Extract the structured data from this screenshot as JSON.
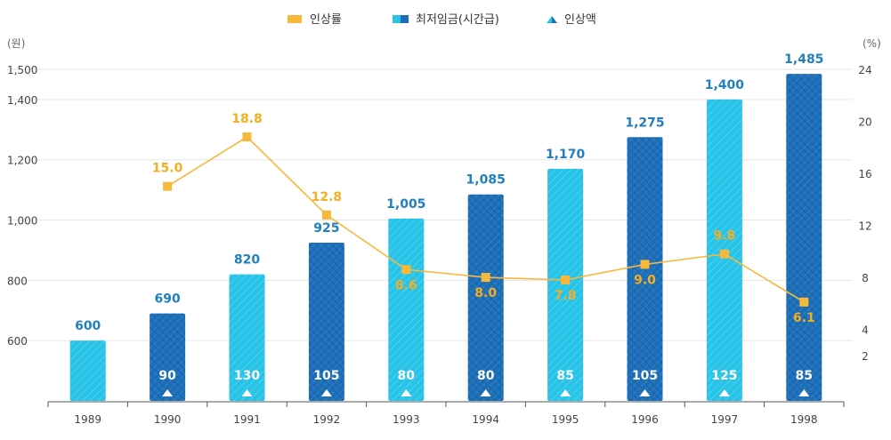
{
  "chart_data": {
    "type": "bar",
    "categories": [
      "1989",
      "1990",
      "1991",
      "1992",
      "1993",
      "1994",
      "1995",
      "1996",
      "1997",
      "1998"
    ],
    "series": [
      {
        "name": "최저임금(시간급)",
        "type": "bar",
        "axis": "left",
        "values": [
          600,
          690,
          820,
          925,
          1005,
          1085,
          1170,
          1275,
          1400,
          1485
        ],
        "labels": [
          "600",
          "690",
          "820",
          "925",
          "1,005",
          "1,085",
          "1,170",
          "1,275",
          "1,400",
          "1,485"
        ],
        "styles": [
          "light",
          "dark",
          "light",
          "dark",
          "light",
          "dark",
          "light",
          "dark",
          "light",
          "dark"
        ]
      },
      {
        "name": "인상률",
        "type": "line",
        "axis": "right",
        "values": [
          null,
          15.0,
          18.8,
          12.8,
          8.6,
          8.0,
          7.8,
          9.0,
          9.8,
          6.1
        ],
        "labels": [
          "",
          "15.0",
          "18.8",
          "12.8",
          "8.6",
          "8.0",
          "7.8",
          "9.0",
          "9.8",
          "6.1"
        ]
      },
      {
        "name": "인상액",
        "type": "marker",
        "values": [
          null,
          90,
          130,
          105,
          80,
          80,
          85,
          105,
          125,
          85
        ],
        "labels": [
          "",
          "90",
          "130",
          "105",
          "80",
          "80",
          "85",
          "105",
          "125",
          "85"
        ]
      }
    ],
    "legend": [
      "인상률",
      "최저임금(시간급)",
      "인상액"
    ],
    "left_axis": {
      "unit": "(원)",
      "ticks": [
        600,
        800,
        1000,
        1200,
        1400,
        1500
      ],
      "tick_labels": [
        "600",
        "800",
        "1,000",
        "1,200",
        "1,400",
        "1,500"
      ],
      "ylim": [
        400,
        1500
      ]
    },
    "right_axis": {
      "unit": "(%)",
      "ticks": [
        2,
        4,
        8,
        12,
        16,
        20,
        24
      ],
      "tick_labels": [
        "2",
        "4",
        "8",
        "12",
        "16",
        "20",
        "24"
      ],
      "ylim": [
        -1.5,
        24
      ]
    },
    "colors": {
      "light_bar": "#29c3e8",
      "dark_bar": "#1e6fb8",
      "line": "#f8b93a",
      "bar_label": "#1f7fbf",
      "rate_label": "#f5ad22",
      "marker": "#ffffff",
      "grid": "#e6e6e6"
    }
  }
}
